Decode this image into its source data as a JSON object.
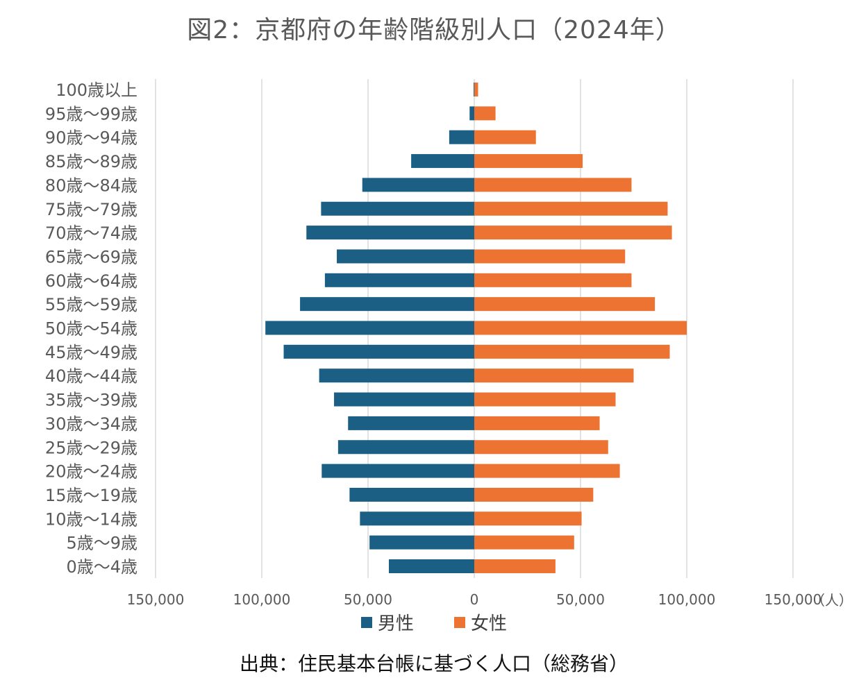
{
  "colors": {
    "male": "#1b5f84",
    "female": "#ed7332",
    "grid": "#d9d9d9",
    "text": "#595959"
  },
  "title": "図2：京都府の年齢階級別人口（2024年）",
  "source": "出典：住民基本台帳に基づく人口（総務省）",
  "unit": "（人）",
  "chart_data": {
    "type": "bar",
    "orientation": "horizontal-population-pyramid",
    "categories": [
      "100歳以上",
      "95歳～99歳",
      "90歳～94歳",
      "85歳～89歳",
      "80歳～84歳",
      "75歳～79歳",
      "70歳～74歳",
      "65歳～69歳",
      "60歳～64歳",
      "55歳～59歳",
      "50歳～54歳",
      "45歳～49歳",
      "40歳～44歳",
      "35歳～39歳",
      "30歳～34歳",
      "25歳～29歳",
      "20歳～24歳",
      "15歳～19歳",
      "10歳～14歳",
      "5歳～9歳",
      "0歳～4歳"
    ],
    "series": [
      {
        "name": "男性",
        "values": [
          300,
          2200,
          11800,
          29700,
          52700,
          72100,
          79000,
          64700,
          70300,
          82000,
          98300,
          89700,
          73000,
          66000,
          59400,
          64100,
          71800,
          58700,
          53800,
          49300,
          40200
        ]
      },
      {
        "name": "女性",
        "values": [
          1800,
          10000,
          29000,
          51000,
          74000,
          91000,
          93000,
          71000,
          74000,
          85000,
          100000,
          92000,
          75000,
          66500,
          59000,
          63000,
          68500,
          56000,
          50500,
          47000,
          38200
        ]
      }
    ],
    "xlim": [
      -150000,
      150000
    ],
    "xticks": [
      -150000,
      -100000,
      -50000,
      0,
      50000,
      100000,
      150000
    ],
    "xtick_labels": [
      "150,000",
      "100,000",
      "50,000",
      "0",
      "50,000",
      "100,000",
      "150,000"
    ],
    "grid": true,
    "legend_position": "bottom"
  }
}
